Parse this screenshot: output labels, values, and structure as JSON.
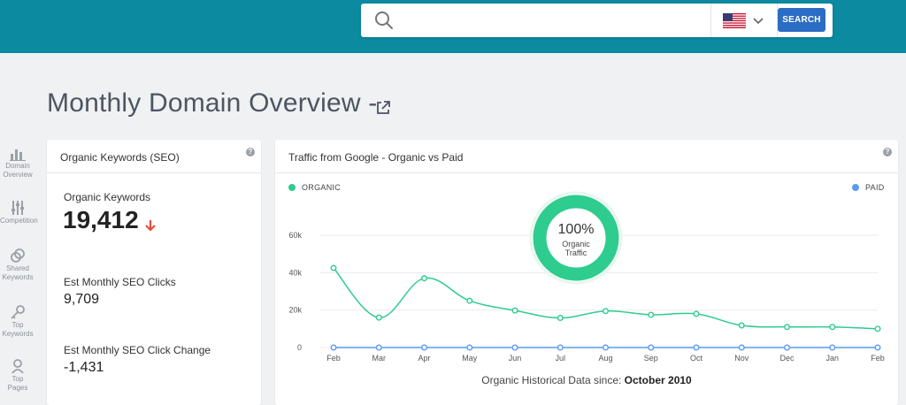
{
  "search": {
    "placeholder": "",
    "value": "",
    "button_label": "SEARCH",
    "country": "United States"
  },
  "page": {
    "title": "Monthly Domain Overview -"
  },
  "sidebar": {
    "items": [
      {
        "label_line1": "Domain",
        "label_line2": "Overview",
        "icon": "bar-chart-icon"
      },
      {
        "label_line1": "Competition",
        "label_line2": "",
        "icon": "sliders-icon"
      },
      {
        "label_line1": "Shared",
        "label_line2": "Keywords",
        "icon": "link-icon"
      },
      {
        "label_line1": "Top",
        "label_line2": "Keywords",
        "icon": "key-icon"
      },
      {
        "label_line1": "Top",
        "label_line2": "Pages",
        "icon": "pages-icon"
      }
    ]
  },
  "keywords_card": {
    "title": "Organic Keywords (SEO)",
    "organic_keywords_label": "Organic Keywords",
    "organic_keywords_value": "19,412",
    "clicks_label": "Est Monthly SEO Clicks",
    "clicks_value": "9,709",
    "click_change_label": "Est Monthly SEO Click Change",
    "click_change_value": "-1,431",
    "trend_color": "#e74c3c"
  },
  "traffic_card": {
    "title": "Traffic from Google - Organic vs Paid",
    "legend_organic": "ORGANIC",
    "legend_paid": "PAID",
    "donut_percent": "100%",
    "donut_label_line1": "Organic",
    "donut_label_line2": "Traffic",
    "footnote_prefix": "Organic Historical Data since: ",
    "footnote_date": "October 2010",
    "organic_color": "#2ecc8f",
    "paid_color": "#5b9bf0"
  },
  "chart_data": {
    "type": "line",
    "categories": [
      "Feb",
      "Mar",
      "Apr",
      "May",
      "Jun",
      "Jul",
      "Aug",
      "Sep",
      "Oct",
      "Nov",
      "Dec",
      "Jan",
      "Feb"
    ],
    "yticks": [
      "0",
      "20k",
      "40k",
      "60k"
    ],
    "ylim": [
      0,
      60000
    ],
    "grid": true,
    "legend_placement": "top",
    "series": [
      {
        "name": "ORGANIC",
        "values": [
          42500,
          16000,
          37000,
          25000,
          19800,
          15800,
          19500,
          17500,
          18000,
          11800,
          11000,
          11000,
          10000
        ]
      },
      {
        "name": "PAID",
        "values": [
          0,
          0,
          0,
          0,
          0,
          0,
          0,
          0,
          0,
          0,
          0,
          0,
          0
        ]
      }
    ]
  }
}
